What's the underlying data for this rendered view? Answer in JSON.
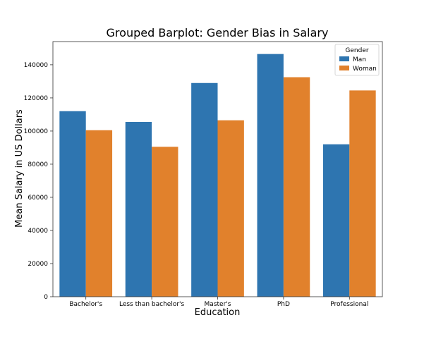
{
  "chart_data": {
    "type": "bar",
    "title": "Grouped Barplot: Gender Bias in Salary",
    "xlabel": "Education",
    "ylabel": "Mean Salary in US Dollars",
    "categories": [
      "Bachelor's",
      "Less than bachelor's",
      "Master's",
      "PhD",
      "Professional"
    ],
    "series": [
      {
        "name": "Man",
        "color": "#2e75b0",
        "values": [
          112000,
          105500,
          129000,
          146500,
          92000
        ]
      },
      {
        "name": "Woman",
        "color": "#e1812c",
        "values": [
          100500,
          90500,
          106500,
          132500,
          124500
        ]
      }
    ],
    "ylim": [
      0,
      154000
    ],
    "yticks": [
      0,
      20000,
      40000,
      60000,
      80000,
      100000,
      120000,
      140000
    ],
    "grid": false,
    "legend": {
      "title": "Gender",
      "position": "top-right"
    }
  }
}
